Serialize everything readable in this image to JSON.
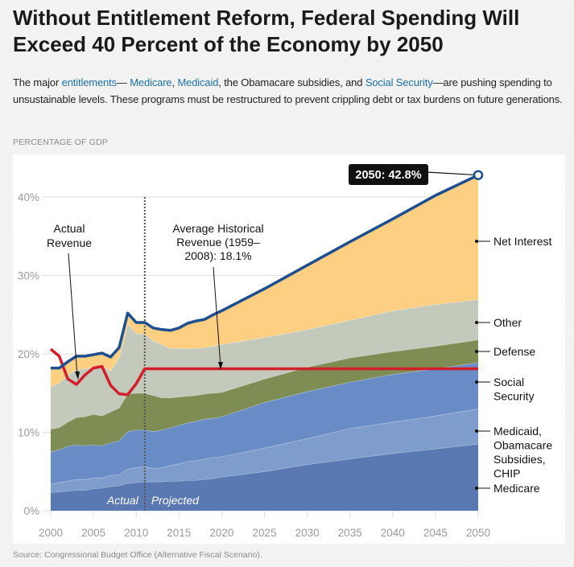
{
  "title": "Without Entitlement Reform, Federal Spending Will Exceed 40 Percent of the Economy by 2050",
  "description": [
    {
      "text": "The major ",
      "link": false
    },
    {
      "text": "entitlements",
      "link": true
    },
    {
      "text": "— ",
      "link": false
    },
    {
      "text": "Medicare",
      "link": true
    },
    {
      "text": ", ",
      "link": false
    },
    {
      "text": "Medicaid",
      "link": true
    },
    {
      "text": ", the Obamacare subsidies, and ",
      "link": false
    },
    {
      "text": "Social Security",
      "link": true
    },
    {
      "text": "—are pushing spending to unsustainable levels. These programs must be restructured to prevent crippling debt or tax burdens on future generations.",
      "link": false
    }
  ],
  "link_color": "#1f6fa6",
  "source": "Source: Congressional Budget Office (Alternative Fiscal Scenario).",
  "chart_data": {
    "type": "area",
    "stacked": true,
    "title": "",
    "ylabel": "PERCENTAGE OF GDP",
    "xlabel": "",
    "xlim": [
      2000,
      2050
    ],
    "ylim": [
      0,
      40
    ],
    "grid": true,
    "x_ticks": [
      "2000",
      "2005",
      "2010",
      "2015",
      "2020",
      "2025",
      "2030",
      "2035",
      "2040",
      "2045",
      "2050"
    ],
    "y_ticks": [
      "0%",
      "10%",
      "20%",
      "30%",
      "40%"
    ],
    "x": [
      2000,
      2001,
      2002,
      2003,
      2004,
      2005,
      2006,
      2007,
      2008,
      2009,
      2010,
      2011,
      2012,
      2013,
      2014,
      2015,
      2016,
      2017,
      2018,
      2019,
      2020,
      2025,
      2030,
      2035,
      2040,
      2045,
      2050
    ],
    "series": [
      {
        "name": "Medicare",
        "color": "#5a78b1",
        "values": [
          2.3,
          2.4,
          2.5,
          2.6,
          2.6,
          2.8,
          2.9,
          3.1,
          3.2,
          3.5,
          3.6,
          3.7,
          3.7,
          3.7,
          3.8,
          3.8,
          3.9,
          3.9,
          4.0,
          4.1,
          4.3,
          5.0,
          5.9,
          6.6,
          7.3,
          7.9,
          8.5
        ]
      },
      {
        "name": "Medicaid, Obamacare Subsidies, CHIP",
        "color": "#7e9dcc",
        "values": [
          1.1,
          1.2,
          1.3,
          1.4,
          1.4,
          1.4,
          1.3,
          1.4,
          1.4,
          1.8,
          1.9,
          1.9,
          1.7,
          1.8,
          2.0,
          2.2,
          2.4,
          2.5,
          2.6,
          2.7,
          2.6,
          3.0,
          3.3,
          3.9,
          4.0,
          4.2,
          4.5
        ]
      },
      {
        "name": "Social Security",
        "color": "#6a8cc6",
        "values": [
          4.1,
          4.2,
          4.4,
          4.4,
          4.3,
          4.2,
          4.1,
          4.2,
          4.3,
          4.8,
          4.8,
          4.7,
          4.7,
          4.8,
          4.8,
          4.9,
          4.9,
          5.0,
          5.1,
          5.0,
          5.1,
          5.8,
          6.0,
          5.9,
          6.1,
          6.0,
          5.9
        ]
      },
      {
        "name": "Defense",
        "color": "#7d8d54",
        "values": [
          2.9,
          2.8,
          3.1,
          3.5,
          3.7,
          3.9,
          3.8,
          3.9,
          4.2,
          4.8,
          4.7,
          4.7,
          4.6,
          4.1,
          3.8,
          3.6,
          3.4,
          3.3,
          3.2,
          3.2,
          3.1,
          3.0,
          3.1,
          3.1,
          2.9,
          2.9,
          2.9
        ]
      },
      {
        "name": "Other",
        "color": "#c4cabb",
        "values": [
          5.4,
          5.7,
          6.0,
          6.1,
          6.1,
          6.0,
          6.4,
          5.2,
          6.4,
          8.9,
          7.6,
          7.5,
          7.0,
          6.8,
          6.3,
          6.2,
          6.1,
          6.0,
          5.9,
          6.0,
          6.1,
          5.3,
          4.8,
          4.8,
          5.2,
          5.3,
          5.1
        ]
      },
      {
        "name": "Net Interest",
        "color": "#fdcf83",
        "values": [
          2.4,
          1.9,
          1.7,
          1.7,
          1.6,
          1.6,
          1.6,
          1.8,
          1.3,
          1.4,
          1.4,
          1.5,
          1.6,
          1.9,
          2.3,
          2.6,
          3.2,
          3.5,
          3.6,
          4.0,
          4.3,
          6.2,
          8.2,
          10.0,
          11.7,
          13.9,
          15.9
        ]
      }
    ],
    "series_labels": {
      "Net Interest": [
        "Net Interest"
      ],
      "Other": [
        "Other"
      ],
      "Defense": [
        "Defense"
      ],
      "Social Security": [
        "Social",
        "Security"
      ],
      "Medicaid, Obamacare Subsidies, CHIP": [
        "Medicaid,",
        "Obamacare",
        "Subsidies,",
        "CHIP"
      ],
      "Medicare": [
        "Medicare"
      ]
    },
    "total_line": {
      "color": "#1d4f8e"
    },
    "revenue": {
      "color": "#d21f2b",
      "x": [
        2000,
        2001,
        2002,
        2003,
        2004,
        2005,
        2006,
        2007,
        2008,
        2009,
        2010,
        2011,
        2050
      ],
      "values": [
        20.6,
        19.7,
        16.8,
        16.1,
        17.3,
        18.2,
        18.4,
        16.0,
        14.9,
        14.8,
        16.2,
        18.1,
        18.1
      ]
    },
    "divider_year": 2011,
    "period_labels": {
      "actual": "Actual",
      "projected": "Projected"
    },
    "annotations": {
      "actual_revenue": [
        "Actual",
        "Revenue"
      ],
      "average_revenue": [
        "Average Historical",
        "Revenue (1959–",
        "2008): 18.1%"
      ],
      "callout": "2050: 42.8%"
    }
  }
}
